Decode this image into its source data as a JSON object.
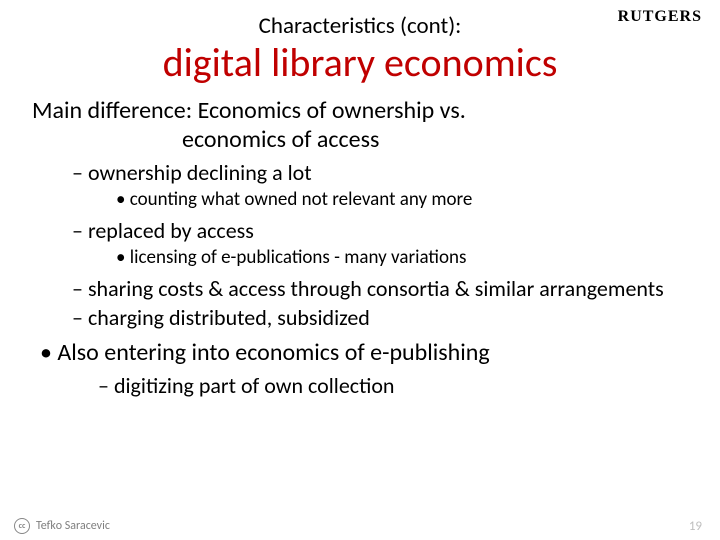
{
  "logo": "RUTGERS",
  "colors": {
    "logo": "#cc0033",
    "title": "#c00000",
    "text": "#000000",
    "author": "#7f7f7f",
    "pagenum": "#bfbfbf",
    "background": "#ffffff"
  },
  "header": {
    "subtitle": "Characteristics (cont):",
    "title": "digital library economics"
  },
  "lead": {
    "line1": "Main difference: Economics of ownership vs.",
    "line2": "economics of access"
  },
  "bullets": {
    "a": "ownership declining a lot",
    "a1": "counting what owned not relevant any more",
    "b": "replaced by access",
    "b1": "licensing of e-publications - many variations",
    "c": "sharing costs & access through consortia & similar arrangements",
    "d": "charging distributed, subsidized",
    "top": "Also entering into economics of e-publishing",
    "top1": "digitizing part of own collection"
  },
  "footer": {
    "author": "Tefko Saracevic",
    "page": "19"
  }
}
